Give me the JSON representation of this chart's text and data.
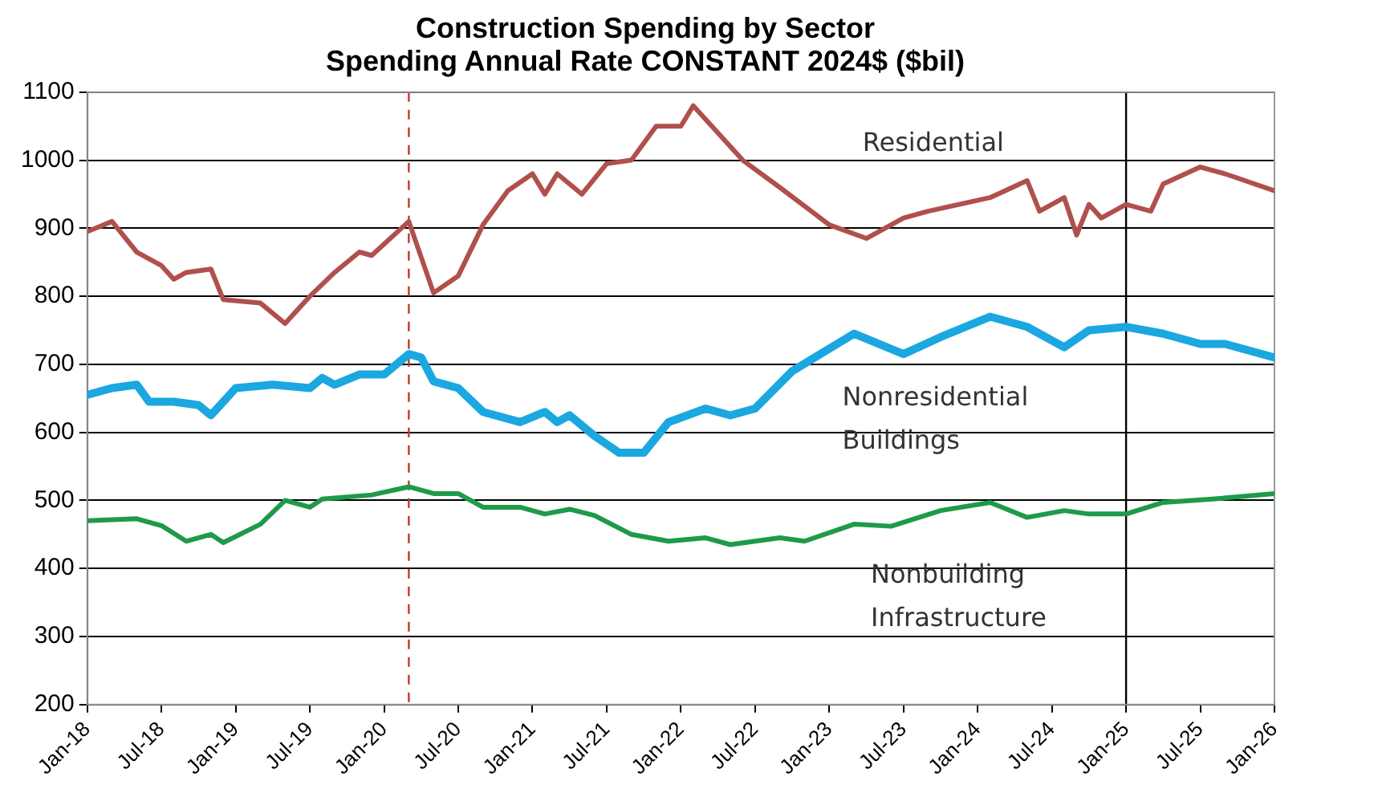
{
  "chart_data": {
    "type": "line",
    "title": "Construction Spending by Sector",
    "subtitle": "Spending Annual Rate CONSTANT 2024$ ($bil)",
    "series": [
      {
        "name": "Residential",
        "color": "#b0504d",
        "x": [
          "2018-01",
          "2018-03",
          "2018-05",
          "2018-07",
          "2018-08",
          "2018-09",
          "2018-11",
          "2018-12",
          "2019-03",
          "2019-05",
          "2019-07",
          "2019-09",
          "2019-11",
          "2019-12",
          "2020-03",
          "2020-05",
          "2020-07",
          "2020-09",
          "2020-11",
          "2021-01",
          "2021-02",
          "2021-03",
          "2021-05",
          "2021-07",
          "2021-09",
          "2021-11",
          "2022-01",
          "2022-02",
          "2022-06",
          "2022-09",
          "2023-01",
          "2023-04",
          "2023-07",
          "2023-09",
          "2024-02",
          "2024-05",
          "2024-06",
          "2024-08",
          "2024-09",
          "2024-10",
          "2024-11",
          "2025-01",
          "2025-03",
          "2025-04",
          "2025-07",
          "2025-09",
          "2026-01"
        ],
        "values": [
          895,
          910,
          865,
          845,
          825,
          835,
          840,
          795,
          790,
          760,
          800,
          835,
          865,
          860,
          910,
          805,
          830,
          905,
          955,
          980,
          950,
          980,
          950,
          995,
          1000,
          1050,
          1050,
          1080,
          1000,
          960,
          905,
          885,
          915,
          925,
          945,
          970,
          925,
          945,
          890,
          935,
          915,
          935,
          925,
          965,
          990,
          980,
          955
        ]
      },
      {
        "name": "Nonresidential Buildings",
        "color": "#1ba7e0",
        "x": [
          "2018-01",
          "2018-03",
          "2018-05",
          "2018-06",
          "2018-08",
          "2018-10",
          "2018-11",
          "2019-01",
          "2019-04",
          "2019-07",
          "2019-08",
          "2019-09",
          "2019-11",
          "2020-01",
          "2020-03",
          "2020-04",
          "2020-05",
          "2020-07",
          "2020-09",
          "2020-12",
          "2021-02",
          "2021-03",
          "2021-04",
          "2021-06",
          "2021-08",
          "2021-10",
          "2021-12",
          "2022-03",
          "2022-05",
          "2022-07",
          "2022-10",
          "2023-03",
          "2023-07",
          "2023-10",
          "2024-02",
          "2024-05",
          "2024-08",
          "2024-10",
          "2025-01",
          "2025-04",
          "2025-07",
          "2025-09",
          "2026-01"
        ],
        "values": [
          655,
          665,
          670,
          645,
          645,
          640,
          625,
          665,
          670,
          665,
          680,
          670,
          685,
          685,
          715,
          710,
          675,
          665,
          630,
          615,
          630,
          615,
          625,
          595,
          570,
          570,
          615,
          635,
          625,
          635,
          690,
          745,
          715,
          740,
          770,
          755,
          725,
          750,
          755,
          745,
          730,
          730,
          710
        ]
      },
      {
        "name": "Nonbuilding Infrastructure",
        "color": "#1f9a4b",
        "x": [
          "2018-01",
          "2018-05",
          "2018-07",
          "2018-09",
          "2018-11",
          "2018-12",
          "2019-03",
          "2019-05",
          "2019-07",
          "2019-08",
          "2019-12",
          "2020-03",
          "2020-05",
          "2020-07",
          "2020-09",
          "2020-12",
          "2021-02",
          "2021-04",
          "2021-06",
          "2021-09",
          "2021-12",
          "2022-03",
          "2022-05",
          "2022-09",
          "2022-11",
          "2023-03",
          "2023-06",
          "2023-10",
          "2024-02",
          "2024-05",
          "2024-08",
          "2024-10",
          "2025-01",
          "2025-04",
          "2025-08",
          "2026-01"
        ],
        "values": [
          470,
          473,
          463,
          440,
          450,
          438,
          465,
          500,
          490,
          502,
          508,
          520,
          510,
          510,
          490,
          490,
          480,
          487,
          478,
          450,
          440,
          445,
          435,
          445,
          440,
          465,
          462,
          485,
          497,
          475,
          485,
          480,
          480,
          497,
          502,
          510
        ]
      }
    ],
    "xlim": [
      "2018-01",
      "2026-01"
    ],
    "xticks": [
      {
        "value": "2018-01",
        "label": "Jan-18"
      },
      {
        "value": "2018-07",
        "label": "Jul-18"
      },
      {
        "value": "2019-01",
        "label": "Jan-19"
      },
      {
        "value": "2019-07",
        "label": "Jul-19"
      },
      {
        "value": "2020-01",
        "label": "Jan-20"
      },
      {
        "value": "2020-07",
        "label": "Jul-20"
      },
      {
        "value": "2021-01",
        "label": "Jan-21"
      },
      {
        "value": "2021-07",
        "label": "Jul-21"
      },
      {
        "value": "2022-01",
        "label": "Jan-22"
      },
      {
        "value": "2022-07",
        "label": "Jul-22"
      },
      {
        "value": "2023-01",
        "label": "Jan-23"
      },
      {
        "value": "2023-07",
        "label": "Jul-23"
      },
      {
        "value": "2024-01",
        "label": "Jan-24"
      },
      {
        "value": "2024-07",
        "label": "Jul-24"
      },
      {
        "value": "2025-01",
        "label": "Jan-25"
      },
      {
        "value": "2025-07",
        "label": "Jul-25"
      },
      {
        "value": "2026-01",
        "label": "Jan-26"
      }
    ],
    "ylim": [
      200,
      1100
    ],
    "yticks": [
      200,
      300,
      400,
      500,
      600,
      700,
      800,
      900,
      1000,
      1100
    ],
    "ref_lines": [
      {
        "axis": "x",
        "value": "2020-03",
        "color": "#c0392b",
        "line_style": "dashed"
      },
      {
        "axis": "x",
        "value": "2025-01",
        "color": "#000000",
        "line_style": "solid"
      }
    ],
    "grid": "y",
    "legend": false,
    "marker": "none",
    "line_style": "solid"
  }
}
